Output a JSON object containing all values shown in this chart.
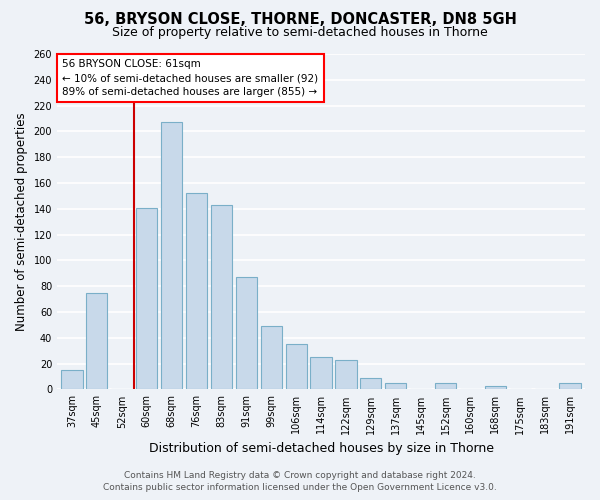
{
  "title": "56, BRYSON CLOSE, THORNE, DONCASTER, DN8 5GH",
  "subtitle": "Size of property relative to semi-detached houses in Thorne",
  "xlabel": "Distribution of semi-detached houses by size in Thorne",
  "ylabel": "Number of semi-detached properties",
  "categories": [
    "37sqm",
    "45sqm",
    "52sqm",
    "60sqm",
    "68sqm",
    "76sqm",
    "83sqm",
    "91sqm",
    "99sqm",
    "106sqm",
    "114sqm",
    "122sqm",
    "129sqm",
    "137sqm",
    "145sqm",
    "152sqm",
    "160sqm",
    "168sqm",
    "175sqm",
    "183sqm",
    "191sqm"
  ],
  "values": [
    15,
    75,
    0,
    141,
    207,
    152,
    143,
    87,
    49,
    35,
    25,
    23,
    9,
    5,
    0,
    5,
    0,
    3,
    0,
    0,
    5
  ],
  "bar_color": "#c8d9ea",
  "bar_edge_color": "#7aafc8",
  "annotation_title": "56 BRYSON CLOSE: 61sqm",
  "annotation_line1": "← 10% of semi-detached houses are smaller (92)",
  "annotation_line2": "89% of semi-detached houses are larger (855) →",
  "annotation_box_facecolor": "white",
  "annotation_box_edgecolor": "red",
  "vline_color": "#cc0000",
  "vline_x": 2.5,
  "ylim": [
    0,
    260
  ],
  "yticks": [
    0,
    20,
    40,
    60,
    80,
    100,
    120,
    140,
    160,
    180,
    200,
    220,
    240,
    260
  ],
  "footer_line1": "Contains HM Land Registry data © Crown copyright and database right 2024.",
  "footer_line2": "Contains public sector information licensed under the Open Government Licence v3.0.",
  "background_color": "#eef2f7",
  "grid_color": "white",
  "title_fontsize": 10.5,
  "subtitle_fontsize": 9,
  "tick_fontsize": 7,
  "ylabel_fontsize": 8.5,
  "xlabel_fontsize": 9,
  "annotation_fontsize": 7.5,
  "footer_fontsize": 6.5
}
